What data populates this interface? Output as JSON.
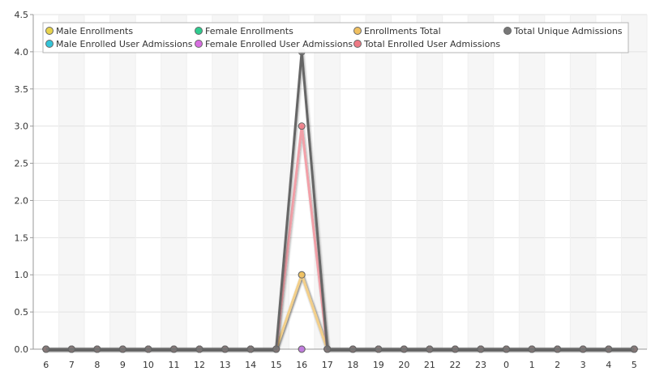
{
  "chart_data": {
    "type": "line",
    "title": "",
    "xlabel": "",
    "ylabel": "",
    "categories": [
      "6",
      "7",
      "8",
      "9",
      "10",
      "11",
      "12",
      "13",
      "14",
      "15",
      "16",
      "17",
      "18",
      "19",
      "20",
      "21",
      "22",
      "23",
      "0",
      "1",
      "2",
      "3",
      "4",
      "5"
    ],
    "ylim": [
      0,
      4.5
    ],
    "yticks": [
      "0.0",
      "0.5",
      "1.0",
      "1.5",
      "2.0",
      "2.5",
      "3.0",
      "3.5",
      "4.0",
      "4.5"
    ],
    "grid": true,
    "legend_position": "top",
    "series": [
      {
        "name": "Male Enrollments",
        "color": "#e8d44d",
        "line_color": "#f0e6a0",
        "values": [
          0,
          0,
          0,
          0,
          0,
          0,
          0,
          0,
          0,
          0,
          1,
          0,
          0,
          0,
          0,
          0,
          0,
          0,
          0,
          0,
          0,
          0,
          0,
          0
        ]
      },
      {
        "name": "Female Enrollments",
        "color": "#2ecc8f",
        "line_color": "#9fe7c7",
        "values": [
          0,
          0,
          0,
          0,
          0,
          0,
          0,
          0,
          0,
          0,
          0,
          0,
          0,
          0,
          0,
          0,
          0,
          0,
          0,
          0,
          0,
          0,
          0,
          0
        ]
      },
      {
        "name": "Enrollments Total",
        "color": "#f0c060",
        "line_color": "#f3cf8a",
        "values": [
          0,
          0,
          0,
          0,
          0,
          0,
          0,
          0,
          0,
          0,
          1,
          0,
          0,
          0,
          0,
          0,
          0,
          0,
          0,
          0,
          0,
          0,
          0,
          0
        ]
      },
      {
        "name": "Total Unique Admissions",
        "color": "#777777",
        "line_color": "#666666",
        "values": [
          0,
          0,
          0,
          0,
          0,
          0,
          0,
          0,
          0,
          0,
          4,
          0,
          0,
          0,
          0,
          0,
          0,
          0,
          0,
          0,
          0,
          0,
          0,
          0
        ]
      },
      {
        "name": "Male Enrolled User Admissions",
        "color": "#33c4d8",
        "line_color": "#9fe1ea",
        "values": [
          0,
          0,
          0,
          0,
          0,
          0,
          0,
          0,
          0,
          0,
          0,
          0,
          0,
          0,
          0,
          0,
          0,
          0,
          0,
          0,
          0,
          0,
          0,
          0
        ]
      },
      {
        "name": "Female Enrolled User Admissions",
        "color": "#d86ee0",
        "line_color": "#e7a6ec",
        "values": [
          0,
          0,
          0,
          0,
          0,
          0,
          0,
          0,
          0,
          0,
          0,
          0,
          0,
          0,
          0,
          0,
          0,
          0,
          0,
          0,
          0,
          0,
          0,
          0
        ]
      },
      {
        "name": "Total Enrolled User Admissions",
        "color": "#ee7a85",
        "line_color": "#f2a0a8",
        "values": [
          0,
          0,
          0,
          0,
          0,
          0,
          0,
          0,
          0,
          0,
          3,
          0,
          0,
          0,
          0,
          0,
          0,
          0,
          0,
          0,
          0,
          0,
          0,
          0
        ]
      }
    ]
  }
}
